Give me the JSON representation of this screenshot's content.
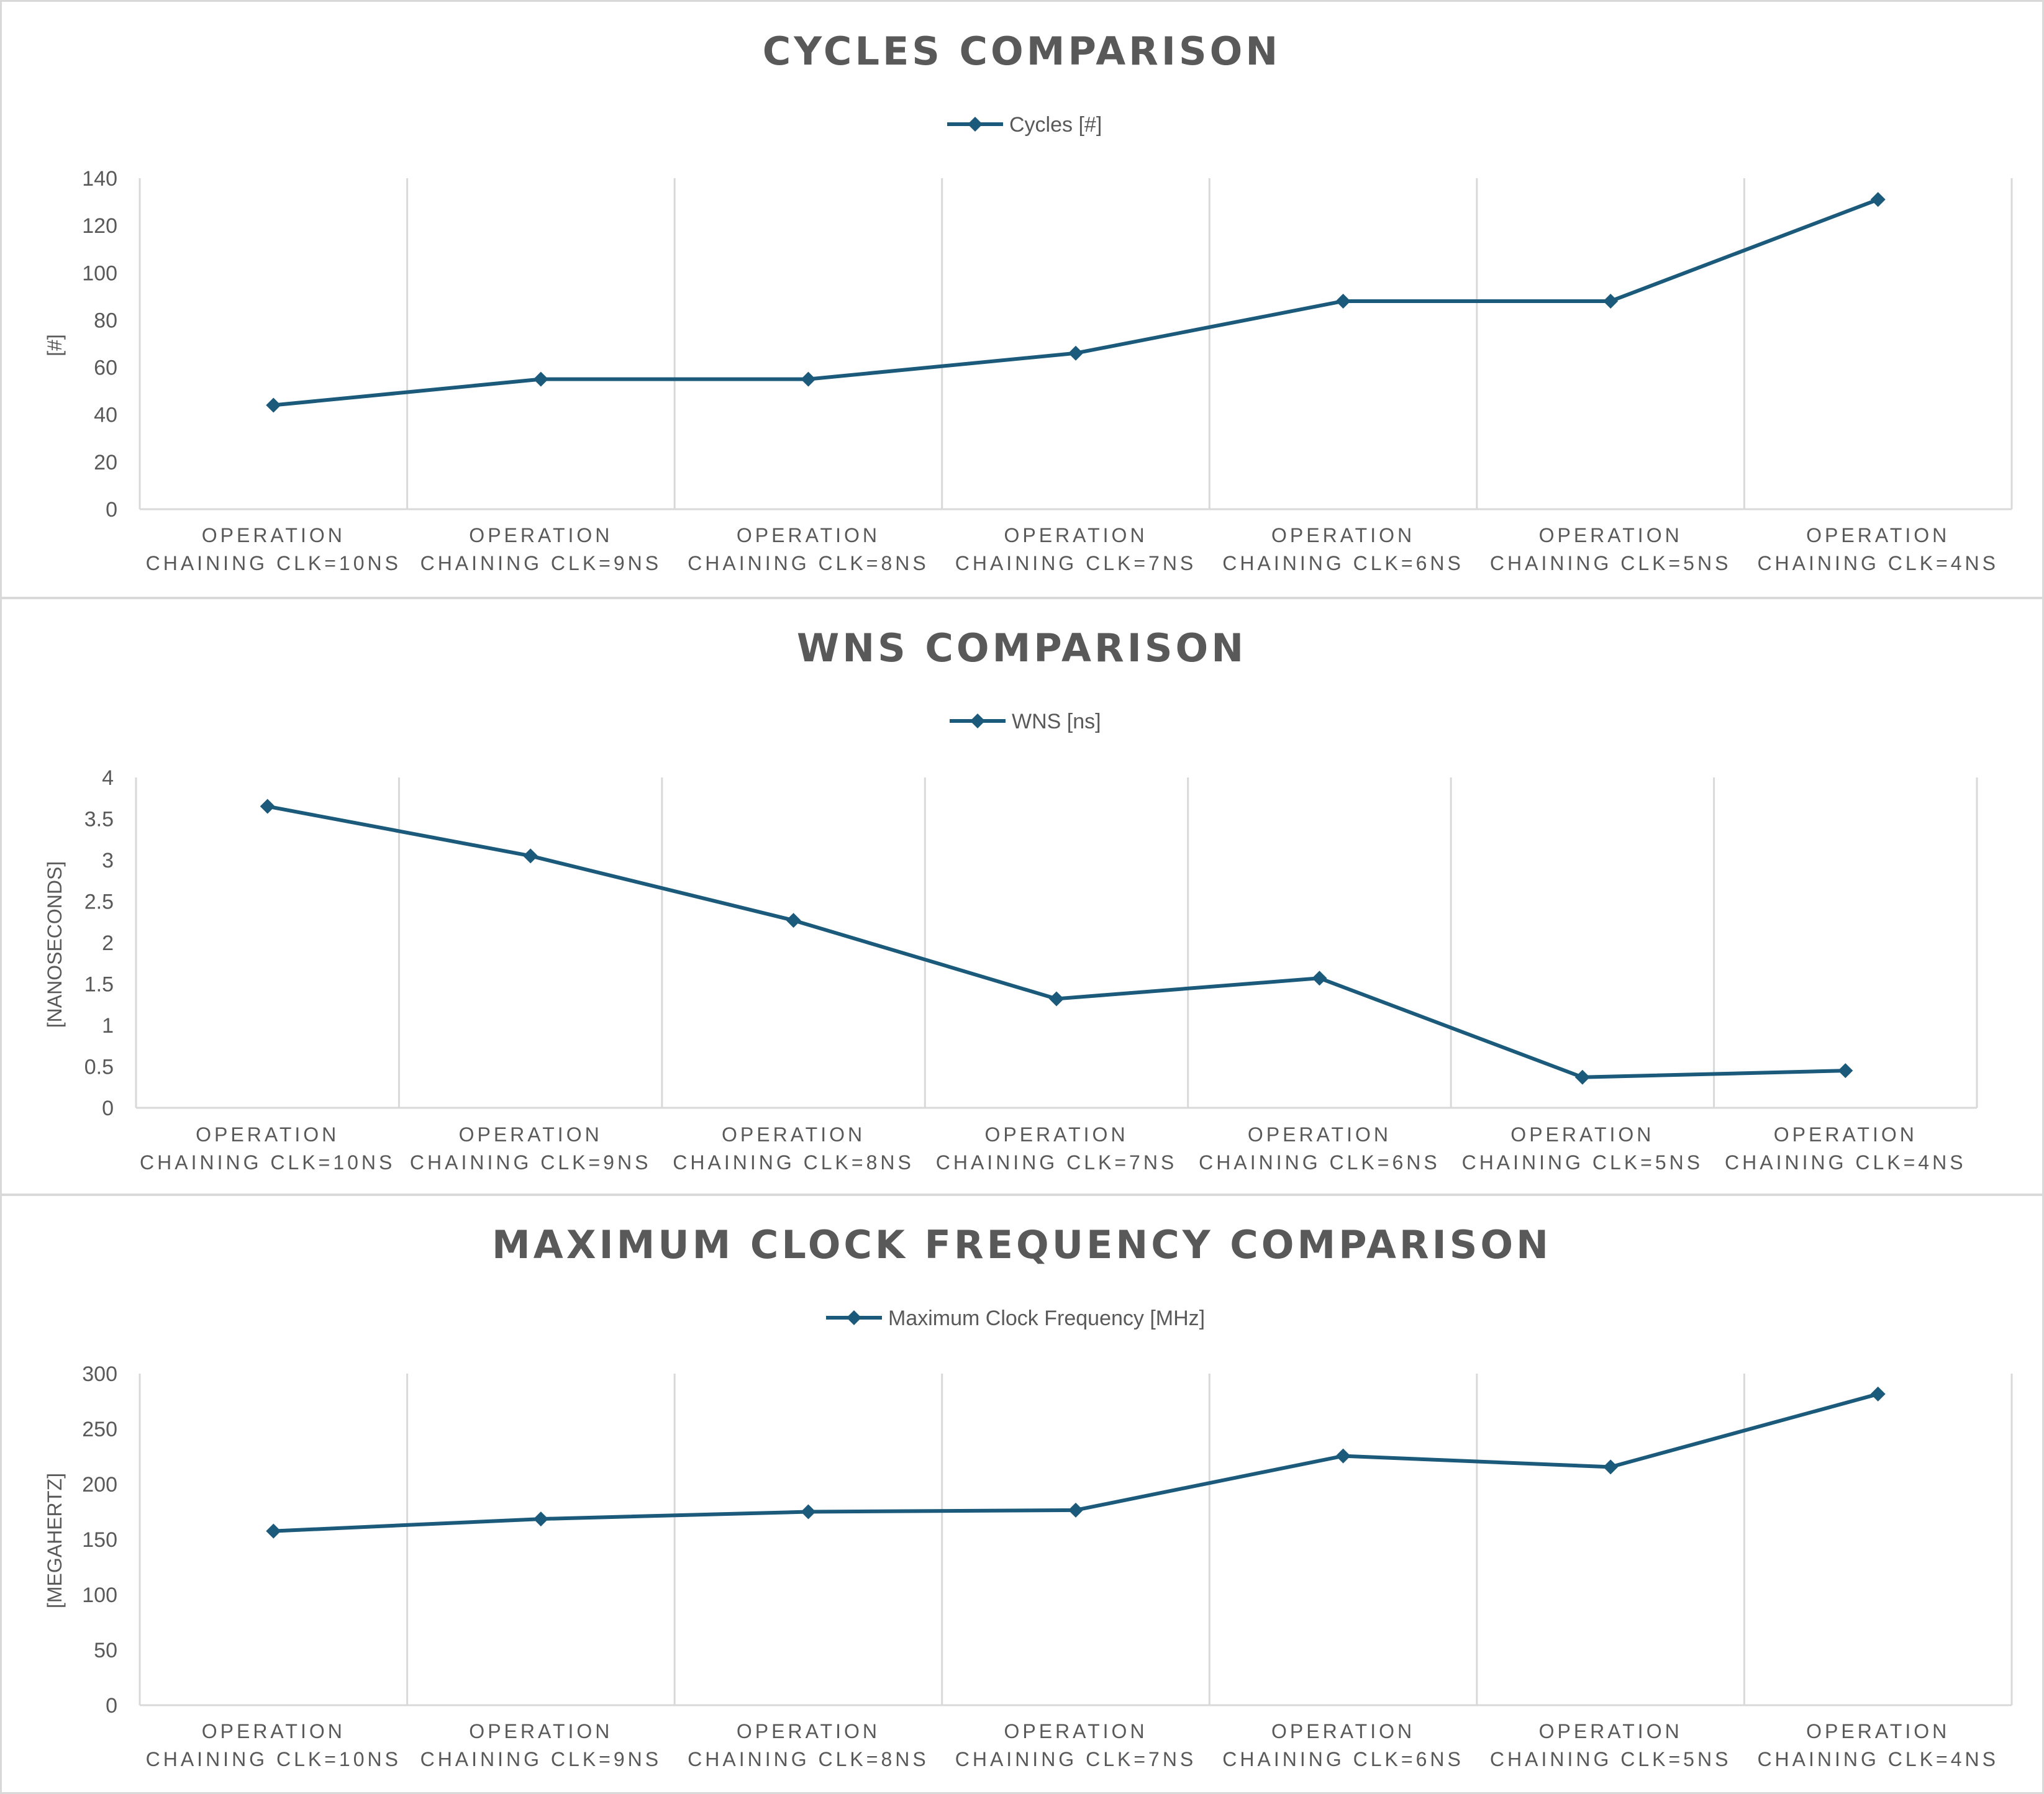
{
  "chart_data": [
    {
      "type": "line",
      "title": "CYCLES COMPARISON",
      "ylabel": "[#]",
      "xlabel": "",
      "ylim": [
        0,
        140
      ],
      "yticks": [
        "0",
        "20",
        "40",
        "60",
        "80",
        "100",
        "120",
        "140"
      ],
      "categories": [
        [
          "OPERATION",
          "CHAINING CLK=10NS"
        ],
        [
          "OPERATION",
          "CHAINING CLK=9NS"
        ],
        [
          "OPERATION",
          "CHAINING CLK=8NS"
        ],
        [
          "OPERATION",
          "CHAINING CLK=7NS"
        ],
        [
          "OPERATION",
          "CHAINING CLK=6NS"
        ],
        [
          "OPERATION",
          "CHAINING CLK=5NS"
        ],
        [
          "OPERATION",
          "CHAINING CLK=4NS"
        ]
      ],
      "series": [
        {
          "name": "Cycles [#]",
          "values": [
            44,
            55,
            55,
            66,
            88,
            88,
            131
          ]
        }
      ],
      "legend": "top-center",
      "grid": "vertical",
      "color": "#1b5a7a"
    },
    {
      "type": "line",
      "title": "WNS COMPARISON",
      "ylabel": "[NANOSECONDS]",
      "xlabel": "",
      "ylim": [
        0,
        4
      ],
      "yticks": [
        "0",
        "0.5",
        "1",
        "1.5",
        "2",
        "2.5",
        "3",
        "3.5",
        "4"
      ],
      "categories": [
        [
          "OPERATION",
          "CHAINING CLK=10NS"
        ],
        [
          "OPERATION",
          "CHAINING CLK=9NS"
        ],
        [
          "OPERATION",
          "CHAINING CLK=8NS"
        ],
        [
          "OPERATION",
          "CHAINING CLK=7NS"
        ],
        [
          "OPERATION",
          "CHAINING CLK=6NS"
        ],
        [
          "OPERATION",
          "CHAINING CLK=5NS"
        ],
        [
          "OPERATION",
          "CHAINING CLK=4NS"
        ]
      ],
      "series": [
        {
          "name": "WNS [ns]",
          "values": [
            3.65,
            3.05,
            2.27,
            1.32,
            1.57,
            0.37,
            0.45
          ]
        }
      ],
      "legend": "top-center",
      "grid": "vertical",
      "color": "#1b5a7a"
    },
    {
      "type": "line",
      "title": "MAXIMUM CLOCK FREQUENCY COMPARISON",
      "ylabel": "[MEGAHERTZ]",
      "xlabel": "",
      "ylim": [
        0,
        300
      ],
      "yticks": [
        "0",
        "50",
        "100",
        "150",
        "200",
        "250",
        "300"
      ],
      "categories": [
        [
          "OPERATION",
          "CHAINING CLK=10NS"
        ],
        [
          "OPERATION",
          "CHAINING CLK=9NS"
        ],
        [
          "OPERATION",
          "CHAINING CLK=8NS"
        ],
        [
          "OPERATION",
          "CHAINING CLK=7NS"
        ],
        [
          "OPERATION",
          "CHAINING CLK=6NS"
        ],
        [
          "OPERATION",
          "CHAINING CLK=5NS"
        ],
        [
          "OPERATION",
          "CHAINING CLK=4NS"
        ]
      ],
      "series": [
        {
          "name": "Maximum Clock Frequency [MHz]",
          "values": [
            157.5,
            168.5,
            175,
            176.5,
            225.5,
            215.5,
            281.5
          ]
        }
      ],
      "legend": "top-center",
      "grid": "vertical",
      "color": "#1b5a7a"
    }
  ]
}
